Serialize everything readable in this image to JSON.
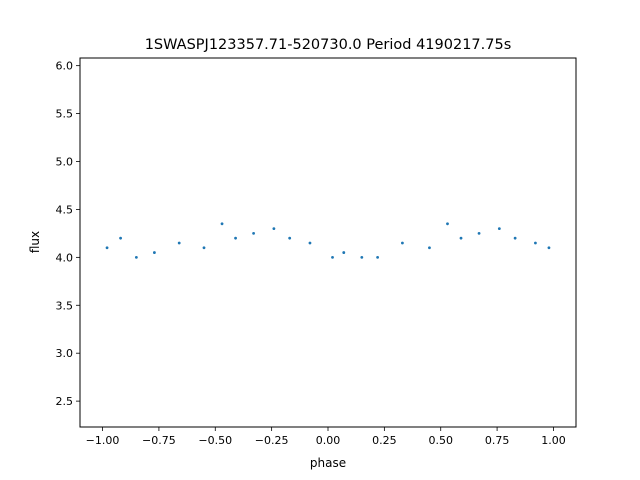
{
  "chart_data": {
    "type": "scatter",
    "title": "1SWASPJ123357.71-520730.0 Period 4190217.75s",
    "xlabel": "phase",
    "ylabel": "flux",
    "xlim": [
      -1.1,
      1.1
    ],
    "ylim": [
      2.23,
      6.08
    ],
    "xticks": [
      -1.0,
      -0.75,
      -0.5,
      -0.25,
      0.0,
      0.25,
      0.5,
      0.75,
      1.0
    ],
    "xtick_labels": [
      "−1.00",
      "−0.75",
      "−0.50",
      "−0.25",
      "0.00",
      "0.25",
      "0.50",
      "0.75",
      "1.00"
    ],
    "yticks": [
      2.5,
      3.0,
      3.5,
      4.0,
      4.5,
      5.0,
      5.5,
      6.0
    ],
    "ytick_labels": [
      "2.5",
      "3.0",
      "3.5",
      "4.0",
      "4.5",
      "5.0",
      "5.5",
      "6.0"
    ],
    "grid": false,
    "marker_color": "#1f77b4",
    "series": [
      {
        "x": [
          -0.98,
          -0.92,
          -0.85,
          -0.77,
          -0.66,
          -0.55,
          -0.47,
          -0.41,
          -0.33,
          -0.24,
          -0.17,
          -0.08,
          0.02,
          0.07,
          0.15,
          0.22,
          0.33,
          0.45,
          0.53,
          0.59,
          0.67,
          0.76,
          0.83,
          0.92,
          0.98
        ],
        "y": [
          4.1,
          4.2,
          4.0,
          4.05,
          4.15,
          4.1,
          4.35,
          4.2,
          4.25,
          4.3,
          4.2,
          4.15,
          4.0,
          4.05,
          4.0,
          4.0,
          4.15,
          4.1,
          4.35,
          4.2,
          4.25,
          4.3,
          4.2,
          4.15,
          4.1
        ]
      }
    ]
  }
}
